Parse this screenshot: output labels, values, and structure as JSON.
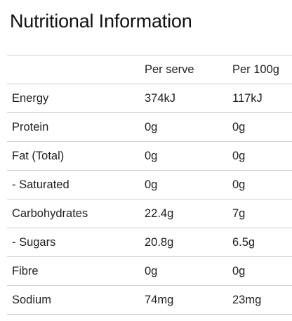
{
  "title": "Nutritional Information",
  "table": {
    "headers": [
      "",
      "Per serve",
      "Per 100g"
    ],
    "rows": [
      {
        "nutrient": "Energy",
        "per_serve": "374kJ",
        "per_100g": "117kJ"
      },
      {
        "nutrient": "Protein",
        "per_serve": "0g",
        "per_100g": "0g"
      },
      {
        "nutrient": "Fat (Total)",
        "per_serve": "0g",
        "per_100g": "0g"
      },
      {
        "nutrient": "- Saturated",
        "per_serve": "0g",
        "per_100g": "0g"
      },
      {
        "nutrient": "Carbohydrates",
        "per_serve": "22.4g",
        "per_100g": "7g"
      },
      {
        "nutrient": "- Sugars",
        "per_serve": "20.8g",
        "per_100g": "6.5g"
      },
      {
        "nutrient": "Fibre",
        "per_serve": "0g",
        "per_100g": "0g"
      },
      {
        "nutrient": "Sodium",
        "per_serve": "74mg",
        "per_100g": "23mg"
      }
    ]
  },
  "colors": {
    "text": "#1f1f1f",
    "rule": "#cfcfcf",
    "background": "#ffffff"
  }
}
